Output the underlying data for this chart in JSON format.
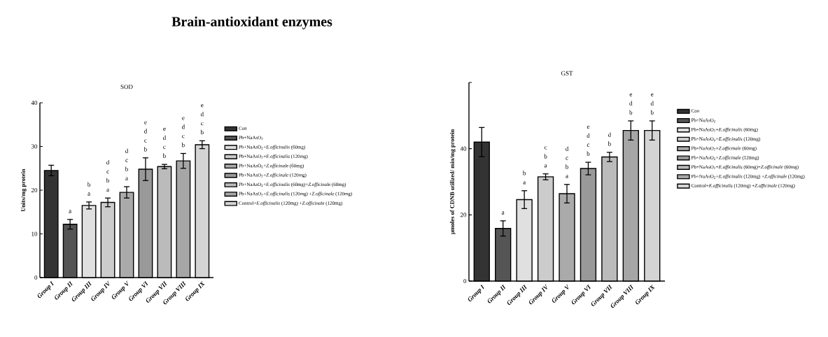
{
  "chart_data": [
    {
      "type": "bar",
      "title": "Brain-antioxidant enzymes",
      "subtitle": "SOD",
      "ylabel": "Units/mg protein",
      "categories": [
        "Group I",
        "Group II",
        "Group III",
        "Group IV",
        "Group V",
        "Group VI",
        "Group VII",
        "Group VIII",
        "Group IX"
      ],
      "series": [
        {
          "name": "Con",
          "color": "#333333",
          "values": [
            24.5,
            null,
            null,
            null,
            null,
            null,
            null,
            null,
            null
          ],
          "errors": [
            1.2,
            null,
            null,
            null,
            null,
            null,
            null,
            null,
            null
          ]
        },
        {
          "name": "Pb+NaAsO$_{2}$",
          "color": "#555555",
          "values": [
            null,
            12.2,
            null,
            null,
            null,
            null,
            null,
            null,
            null
          ],
          "errors": [
            null,
            1.1,
            null,
            null,
            null,
            null,
            null,
            null,
            null
          ],
          "value_labels": [
            null,
            "a",
            null,
            null,
            null,
            null,
            null,
            null,
            null
          ]
        },
        {
          "name": "Pb+NaAsO$_{2}$+*E.officinalis* (60mg)",
          "color": "#e0e0e0",
          "values": [
            null,
            null,
            16.5,
            null,
            null,
            null,
            null,
            null,
            null
          ],
          "errors": [
            null,
            null,
            0.8,
            null,
            null,
            null,
            null,
            null,
            null
          ],
          "value_labels": [
            null,
            null,
            "b a",
            null,
            null,
            null,
            null,
            null,
            null
          ]
        },
        {
          "name": "Pb+NaAsO$_{2}$+*E.officinalis* (120mg)",
          "color": "#cccccc",
          "values": [
            null,
            null,
            null,
            17.2,
            null,
            null,
            null,
            null,
            null
          ],
          "errors": [
            null,
            null,
            null,
            1.0,
            null,
            null,
            null,
            null,
            null
          ],
          "value_labels": [
            null,
            null,
            null,
            "d c b a",
            null,
            null,
            null,
            null,
            null
          ]
        },
        {
          "name": "Pb+NaAsO$_{2}$+*Z.officinale* (60mg)",
          "color": "#aaaaaa",
          "values": [
            null,
            null,
            null,
            null,
            19.5,
            null,
            null,
            null,
            null
          ],
          "errors": [
            null,
            null,
            null,
            null,
            1.3,
            null,
            null,
            null,
            null
          ],
          "value_labels": [
            null,
            null,
            null,
            null,
            "d c b a",
            null,
            null,
            null,
            null
          ]
        },
        {
          "name": "Pb+NaAsO$_{2}$+*Z.officinale* (120mg)",
          "color": "#999999",
          "values": [
            null,
            null,
            null,
            null,
            null,
            24.8,
            null,
            null,
            null
          ],
          "errors": [
            null,
            null,
            null,
            null,
            null,
            2.6,
            null,
            null,
            null
          ],
          "value_labels": [
            null,
            null,
            null,
            null,
            null,
            "e d c b",
            null,
            null,
            null
          ]
        },
        {
          "name": "Pb+NaAsO$_{2}$+*E.officinalis* (60mg)+*Z.officinale* (60mg)",
          "color": "#bbbbbb",
          "values": [
            null,
            null,
            null,
            null,
            null,
            null,
            25.4,
            null,
            null
          ],
          "errors": [
            null,
            null,
            null,
            null,
            null,
            null,
            0.5,
            null,
            null
          ],
          "value_labels": [
            null,
            null,
            null,
            null,
            null,
            null,
            "e d c b",
            null,
            null
          ]
        },
        {
          "name": "Pb+NaAsO$_{2}$+*E.officinalis* (120mg) +*Z.officinale* (120mg)",
          "color": "#a6a6a6",
          "values": [
            null,
            null,
            null,
            null,
            null,
            null,
            null,
            26.7,
            null
          ],
          "errors": [
            null,
            null,
            null,
            null,
            null,
            null,
            null,
            1.7,
            null
          ],
          "value_labels": [
            null,
            null,
            null,
            null,
            null,
            null,
            null,
            "e d c b",
            null
          ]
        },
        {
          "name": "Control+*E.officinalis* (120mg) +*Z.officinale* (120mg)",
          "color": "#d4d4d4",
          "values": [
            null,
            null,
            null,
            null,
            null,
            null,
            null,
            null,
            30.4
          ],
          "errors": [
            null,
            null,
            null,
            null,
            null,
            null,
            null,
            null,
            0.9
          ],
          "value_labels": [
            null,
            null,
            null,
            null,
            null,
            null,
            null,
            null,
            "e d c b"
          ]
        }
      ],
      "ylim": [
        0,
        40
      ],
      "yticks": [
        0,
        10,
        20,
        30,
        40
      ],
      "legend": "right"
    },
    {
      "type": "bar",
      "title": "GST",
      "ylabel": "µmoles of CDNB utilized/ min/mg protein",
      "categories": [
        "Group I",
        "Group II",
        "Group III",
        "Group IV",
        "Group V",
        "Group VI",
        "Group VII",
        "Group VIII",
        "Group IX"
      ],
      "series": [
        {
          "name": "Con",
          "color": "#333333",
          "values": [
            42.0,
            null,
            null,
            null,
            null,
            null,
            null,
            null,
            null
          ],
          "errors": [
            4.4,
            null,
            null,
            null,
            null,
            null,
            null,
            null,
            null
          ]
        },
        {
          "name": "Pb+NaAsO$_{2}$",
          "color": "#555555",
          "values": [
            null,
            15.9,
            null,
            null,
            null,
            null,
            null,
            null,
            null
          ],
          "errors": [
            null,
            2.3,
            null,
            null,
            null,
            null,
            null,
            null,
            null
          ],
          "value_labels": [
            null,
            "a",
            null,
            null,
            null,
            null,
            null,
            null,
            null
          ]
        },
        {
          "name": "Pb+NaAsO$_{2}$+*E.officinalis* (60mg)",
          "color": "#e0e0e0",
          "values": [
            null,
            null,
            24.6,
            null,
            null,
            null,
            null,
            null,
            null
          ],
          "errors": [
            null,
            null,
            2.7,
            null,
            null,
            null,
            null,
            null,
            null
          ],
          "value_labels": [
            null,
            null,
            "b a",
            null,
            null,
            null,
            null,
            null,
            null
          ]
        },
        {
          "name": "Pb+NaAsO$_{2}$+*E.officinalis* (120mg)",
          "color": "#cccccc",
          "values": [
            null,
            null,
            null,
            31.5,
            null,
            null,
            null,
            null,
            null
          ],
          "errors": [
            null,
            null,
            null,
            0.9,
            null,
            null,
            null,
            null,
            null
          ],
          "value_labels": [
            null,
            null,
            null,
            "c b a",
            null,
            null,
            null,
            null,
            null
          ]
        },
        {
          "name": "Pb+NaAsO$_{2}$+*Z.officinale* (60mg)",
          "color": "#aaaaaa",
          "values": [
            null,
            null,
            null,
            null,
            26.4,
            null,
            null,
            null,
            null
          ],
          "errors": [
            null,
            null,
            null,
            null,
            2.8,
            null,
            null,
            null,
            null
          ],
          "value_labels": [
            null,
            null,
            null,
            null,
            "d c b a",
            null,
            null,
            null,
            null
          ]
        },
        {
          "name": "Pb+NaAsO$_{2}$+*Z.officinale* (120mg)",
          "color": "#999999",
          "values": [
            null,
            null,
            null,
            null,
            null,
            34.0,
            null,
            null,
            null
          ],
          "errors": [
            null,
            null,
            null,
            null,
            null,
            1.9,
            null,
            null,
            null
          ],
          "value_labels": [
            null,
            null,
            null,
            null,
            null,
            "e d c b",
            null,
            null,
            null
          ]
        },
        {
          "name": "Pb+NaAsO$_{2}$+*E.officinalis* (60mg)+*Z.officinale* (60mg)",
          "color": "#bbbbbb",
          "values": [
            null,
            null,
            null,
            null,
            null,
            null,
            37.5,
            null,
            null
          ],
          "errors": [
            null,
            null,
            null,
            null,
            null,
            null,
            1.4,
            null,
            null
          ],
          "value_labels": [
            null,
            null,
            null,
            null,
            null,
            null,
            "d b",
            null,
            null
          ]
        },
        {
          "name": "Pb+NaAsO$_{2}$+*E.officinalis* (120mg) +*Z.officinale* (120mg)",
          "color": "#a6a6a6",
          "values": [
            null,
            null,
            null,
            null,
            null,
            null,
            null,
            45.5,
            null
          ],
          "errors": [
            null,
            null,
            null,
            null,
            null,
            null,
            null,
            2.9,
            null
          ],
          "value_labels": [
            null,
            null,
            null,
            null,
            null,
            null,
            null,
            "e d b",
            null
          ]
        },
        {
          "name": "Control+*E.officinalis* (120mg) +*Z.officinale* (120mg)",
          "color": "#d4d4d4",
          "values": [
            null,
            null,
            null,
            null,
            null,
            null,
            null,
            null,
            45.5
          ],
          "errors": [
            null,
            null,
            null,
            null,
            null,
            null,
            null,
            null,
            2.9
          ],
          "value_labels": [
            null,
            null,
            null,
            null,
            null,
            null,
            null,
            null,
            "e d b"
          ]
        }
      ],
      "ylim": [
        0,
        60
      ],
      "yticks": [
        0,
        20,
        40,
        {
          "value": 60,
          "label": null
        }
      ],
      "legend": "right"
    }
  ]
}
